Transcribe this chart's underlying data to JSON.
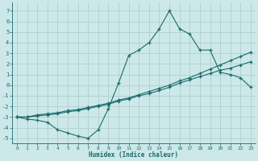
{
  "xlabel": "Humidex (Indice chaleur)",
  "xlim": [
    -0.5,
    23.5
  ],
  "ylim": [
    -5.5,
    7.8
  ],
  "yticks": [
    -5,
    -4,
    -3,
    -2,
    -1,
    0,
    1,
    2,
    3,
    4,
    5,
    6,
    7
  ],
  "xticks": [
    0,
    1,
    2,
    3,
    4,
    5,
    6,
    7,
    8,
    9,
    10,
    11,
    12,
    13,
    14,
    15,
    16,
    17,
    18,
    19,
    20,
    21,
    22,
    23
  ],
  "bg_color": "#cde8e8",
  "line_color": "#1a6b6b",
  "grid_color": "#b0d0d0",
  "line1_x": [
    0,
    1,
    2,
    3,
    4,
    5,
    6,
    7,
    8,
    9,
    10,
    11,
    12,
    13,
    14,
    15,
    16,
    17,
    18,
    19,
    20,
    21,
    22,
    23
  ],
  "line1_y": [
    -3.0,
    -3.2,
    -3.3,
    -3.5,
    -4.2,
    -4.5,
    -4.8,
    -5.0,
    -4.2,
    -2.2,
    0.2,
    2.8,
    3.3,
    4.0,
    5.3,
    7.0,
    5.3,
    4.8,
    3.3,
    3.3,
    1.2,
    1.0,
    0.7,
    -0.2
  ],
  "line2_x": [
    0,
    1,
    2,
    3,
    4,
    5,
    6,
    7,
    8,
    9,
    10,
    11,
    12,
    13,
    14,
    15,
    16,
    17,
    18,
    19,
    20,
    21,
    22,
    23
  ],
  "line2_y": [
    -3.0,
    -3.0,
    -2.9,
    -2.8,
    -2.7,
    -2.5,
    -2.4,
    -2.2,
    -2.0,
    -1.8,
    -1.5,
    -1.3,
    -1.0,
    -0.8,
    -0.5,
    -0.2,
    0.2,
    0.5,
    0.8,
    1.1,
    1.4,
    1.6,
    1.9,
    2.2
  ],
  "line3_x": [
    0,
    1,
    2,
    3,
    4,
    5,
    6,
    7,
    8,
    9,
    10,
    11,
    12,
    13,
    14,
    15,
    16,
    17,
    18,
    19,
    20,
    21,
    22,
    23
  ],
  "line3_y": [
    -3.0,
    -3.0,
    -2.8,
    -2.7,
    -2.6,
    -2.4,
    -2.3,
    -2.1,
    -1.9,
    -1.7,
    -1.4,
    -1.2,
    -0.9,
    -0.6,
    -0.3,
    0.0,
    0.4,
    0.7,
    1.1,
    1.5,
    1.9,
    2.3,
    2.7,
    3.1
  ]
}
